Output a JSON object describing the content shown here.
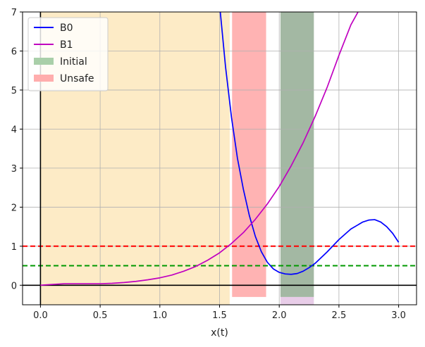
{
  "chart_data": {
    "type": "line",
    "title": "",
    "xlabel": "x(t)",
    "ylabel": "",
    "xlim": [
      -0.15,
      3.15
    ],
    "ylim": [
      -0.5,
      7
    ],
    "xticks": [
      0.0,
      0.5,
      1.0,
      1.5,
      2.0,
      2.5,
      3.0
    ],
    "xtick_labels": [
      "0.0",
      "0.5",
      "1.0",
      "1.5",
      "2.0",
      "2.5",
      "3.0"
    ],
    "yticks": [
      0,
      1,
      2,
      3,
      4,
      5,
      6,
      7
    ],
    "ytick_labels": [
      "0",
      "1",
      "2",
      "3",
      "4",
      "5",
      "6",
      "7"
    ],
    "grid": true,
    "legend_position": "top-left",
    "series": [
      {
        "name": "B0",
        "color": "#0000ff",
        "x": [
          1.5,
          1.55,
          1.6,
          1.65,
          1.7,
          1.75,
          1.8,
          1.85,
          1.9,
          1.95,
          2.0,
          2.05,
          2.1,
          2.15,
          2.2,
          2.25,
          2.3,
          2.4,
          2.5,
          2.6,
          2.7,
          2.75,
          2.8,
          2.85,
          2.9,
          2.95,
          3.0
        ],
        "y": [
          7.2,
          5.6,
          4.3,
          3.25,
          2.45,
          1.78,
          1.25,
          0.86,
          0.59,
          0.42,
          0.33,
          0.29,
          0.28,
          0.3,
          0.36,
          0.45,
          0.56,
          0.85,
          1.17,
          1.44,
          1.62,
          1.67,
          1.68,
          1.62,
          1.5,
          1.33,
          1.1
        ]
      },
      {
        "name": "B1",
        "color": "#c000c0",
        "x": [
          0.0,
          0.1,
          0.2,
          0.3,
          0.4,
          0.5,
          0.6,
          0.7,
          0.8,
          0.9,
          1.0,
          1.1,
          1.2,
          1.3,
          1.4,
          1.5,
          1.6,
          1.7,
          1.8,
          1.9,
          2.0,
          2.1,
          2.2,
          2.3,
          2.4,
          2.5,
          2.6,
          2.66
        ],
        "y": [
          0.0,
          0.02,
          0.04,
          0.04,
          0.04,
          0.04,
          0.05,
          0.07,
          0.1,
          0.14,
          0.19,
          0.26,
          0.36,
          0.48,
          0.64,
          0.83,
          1.07,
          1.35,
          1.69,
          2.08,
          2.53,
          3.06,
          3.65,
          4.32,
          5.06,
          5.89,
          6.67,
          7.0
        ]
      }
    ],
    "regions": [
      {
        "name": "",
        "x0": 0.0,
        "x1": 1.585,
        "y0": -0.5,
        "y1": 7.0,
        "color": "#fdebc6"
      },
      {
        "name": "Unsafe",
        "x0": 1.605,
        "x1": 1.89,
        "y0": -0.3,
        "y1": 7.0,
        "color": "#ffb3b3"
      },
      {
        "name": "",
        "x0": 2.01,
        "x1": 2.29,
        "y0": -0.5,
        "y1": -0.3,
        "color": "#e8cde8"
      },
      {
        "name": "Initial",
        "x0": 2.01,
        "x1": 2.29,
        "y0": -0.3,
        "y1": 7.0,
        "color": "#a3b8a3"
      }
    ],
    "hlines": [
      {
        "y": 1.0,
        "color": "#ff0000",
        "style": "dashed"
      },
      {
        "y": 0.5,
        "color": "#009900",
        "style": "dashed"
      },
      {
        "y": 0.0,
        "color": "#000000",
        "style": "solid"
      }
    ],
    "vlines": [
      {
        "x": 0.0,
        "color": "#000000",
        "style": "solid"
      }
    ],
    "legend": [
      {
        "label": "B0",
        "kind": "line",
        "color": "#0000ff"
      },
      {
        "label": "B1",
        "kind": "line",
        "color": "#c000c0"
      },
      {
        "label": "Initial",
        "kind": "patch",
        "color": "#a9cfa9"
      },
      {
        "label": "Unsafe",
        "kind": "patch",
        "color": "#ffadad"
      }
    ]
  }
}
